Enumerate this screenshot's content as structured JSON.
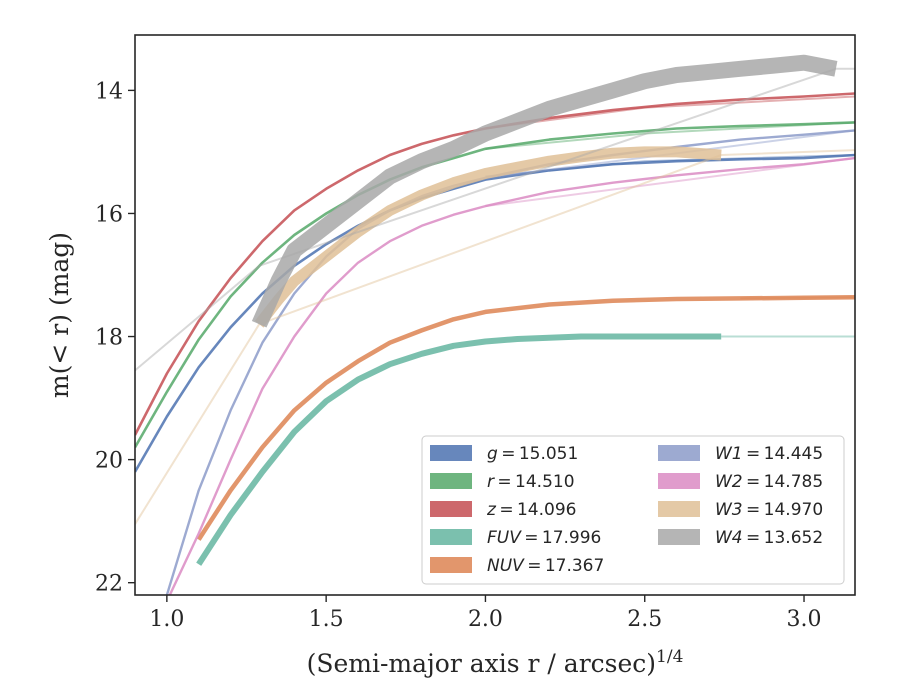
{
  "chart_data": {
    "type": "line",
    "xlabel": "(Semi-major axis r / arcsec)",
    "xlabel_superscript": "1/4",
    "ylabel": "m(< r) (mag)",
    "xlim": [
      0.9,
      3.16
    ],
    "ylim": [
      22.2,
      13.1
    ],
    "y_inverted": true,
    "grid": false,
    "legend_position": "lower-right",
    "xticks": [
      1.0,
      1.5,
      2.0,
      2.5,
      3.0
    ],
    "xtick_labels": [
      "1.0",
      "1.5",
      "2.0",
      "2.5",
      "3.0"
    ],
    "yticks": [
      14,
      16,
      18,
      20,
      22
    ],
    "ytick_labels": [
      "14",
      "16",
      "18",
      "20",
      "22"
    ],
    "series": [
      {
        "name": "g",
        "label_value": "15.051",
        "color": "#4c72b0",
        "x": [
          0.9,
          1.0,
          1.1,
          1.2,
          1.3,
          1.4,
          1.5,
          1.6,
          1.7,
          1.8,
          1.9,
          2.0,
          2.2,
          2.4,
          2.6,
          2.8,
          3.0,
          3.16
        ],
        "y": [
          20.2,
          19.3,
          18.5,
          17.85,
          17.3,
          16.85,
          16.5,
          16.2,
          15.95,
          15.75,
          15.6,
          15.45,
          15.3,
          15.2,
          15.15,
          15.12,
          15.1,
          15.05
        ],
        "model_x": [
          2.0,
          2.5,
          3.16
        ],
        "model_y": [
          15.4,
          15.15,
          15.05
        ]
      },
      {
        "name": "r",
        "label_value": "14.510",
        "color": "#55a868",
        "x": [
          0.9,
          1.0,
          1.1,
          1.2,
          1.3,
          1.4,
          1.5,
          1.6,
          1.7,
          1.8,
          1.9,
          2.0,
          2.2,
          2.4,
          2.6,
          2.8,
          3.0,
          3.16
        ],
        "y": [
          19.8,
          18.9,
          18.05,
          17.35,
          16.8,
          16.35,
          16.0,
          15.7,
          15.45,
          15.25,
          15.1,
          14.95,
          14.8,
          14.7,
          14.62,
          14.58,
          14.55,
          14.52
        ],
        "model_x": [
          2.0,
          2.5,
          3.16
        ],
        "model_y": [
          14.95,
          14.7,
          14.52
        ]
      },
      {
        "name": "z",
        "label_value": "14.096",
        "color": "#c44e52",
        "x": [
          0.9,
          1.0,
          1.1,
          1.2,
          1.3,
          1.4,
          1.5,
          1.6,
          1.7,
          1.8,
          1.9,
          2.0,
          2.2,
          2.4,
          2.6,
          2.8,
          3.0,
          3.16
        ],
        "y": [
          19.6,
          18.6,
          17.75,
          17.05,
          16.45,
          15.95,
          15.6,
          15.3,
          15.05,
          14.87,
          14.73,
          14.62,
          14.45,
          14.32,
          14.22,
          14.15,
          14.1,
          14.05
        ],
        "model_x": [
          2.0,
          2.5,
          3.16
        ],
        "model_y": [
          14.62,
          14.28,
          14.1
        ]
      },
      {
        "name": "FUV",
        "label_value": "17.996",
        "color": "#64b5a0",
        "x": [
          1.1,
          1.2,
          1.3,
          1.4,
          1.5,
          1.6,
          1.7,
          1.8,
          1.9,
          2.0,
          2.1,
          2.2,
          2.3,
          2.4,
          2.5,
          2.6,
          2.74
        ],
        "y": [
          21.7,
          20.9,
          20.2,
          19.55,
          19.05,
          18.7,
          18.45,
          18.28,
          18.15,
          18.08,
          18.04,
          18.02,
          18.0,
          18.0,
          18.0,
          18.0,
          18.0
        ],
        "model_x": [
          2.74,
          3.16
        ],
        "model_y": [
          18.0,
          18.0
        ]
      },
      {
        "name": "NUV",
        "label_value": "17.367",
        "color": "#dd8452",
        "x": [
          1.1,
          1.2,
          1.3,
          1.4,
          1.5,
          1.6,
          1.7,
          1.8,
          1.9,
          2.0,
          2.2,
          2.4,
          2.6,
          2.8,
          3.0,
          3.16
        ],
        "y": [
          21.3,
          20.5,
          19.8,
          19.2,
          18.75,
          18.4,
          18.1,
          17.9,
          17.72,
          17.6,
          17.48,
          17.42,
          17.39,
          17.38,
          17.37,
          17.36
        ],
        "model_x": [
          2.8,
          3.16
        ],
        "model_y": [
          17.38,
          17.36
        ]
      },
      {
        "name": "W1",
        "label_value": "14.445",
        "color": "#8c9bc9",
        "x": [
          1.0,
          1.1,
          1.2,
          1.3,
          1.4,
          1.5,
          1.6,
          1.7,
          1.8,
          1.9,
          2.0,
          2.2,
          2.4,
          2.6,
          2.8,
          3.0,
          3.16
        ],
        "y": [
          22.2,
          20.5,
          19.2,
          18.1,
          17.3,
          16.7,
          16.25,
          15.95,
          15.72,
          15.55,
          15.42,
          15.2,
          15.05,
          14.92,
          14.8,
          14.72,
          14.65
        ],
        "model_x": [
          2.0,
          3.16
        ],
        "model_y": [
          15.42,
          14.65
        ]
      },
      {
        "name": "W2",
        "label_value": "14.785",
        "color": "#da8bc3",
        "x": [
          1.0,
          1.1,
          1.2,
          1.3,
          1.4,
          1.5,
          1.6,
          1.7,
          1.8,
          1.9,
          2.0,
          2.2,
          2.4,
          2.6,
          2.8,
          3.0,
          3.16
        ],
        "y": [
          22.3,
          21.2,
          20.0,
          18.85,
          18.0,
          17.3,
          16.8,
          16.45,
          16.2,
          16.02,
          15.88,
          15.65,
          15.5,
          15.38,
          15.28,
          15.2,
          15.1
        ],
        "model_x": [
          2.0,
          3.16
        ],
        "model_y": [
          15.88,
          15.1
        ]
      },
      {
        "name": "W3",
        "label_value": "14.970",
        "color": "#dfc097",
        "x": [
          1.29,
          1.35,
          1.4,
          1.5,
          1.6,
          1.7,
          1.8,
          1.9,
          2.0,
          2.1,
          2.2,
          2.3,
          2.4,
          2.5,
          2.6,
          2.74
        ],
        "y": [
          17.8,
          17.4,
          17.1,
          16.7,
          16.3,
          15.95,
          15.7,
          15.5,
          15.35,
          15.25,
          15.15,
          15.08,
          15.02,
          15.0,
          15.0,
          15.05
        ],
        "model_x": [
          0.9,
          1.29,
          2.74,
          3.16
        ],
        "model_y": [
          21.05,
          17.8,
          15.05,
          14.97
        ]
      },
      {
        "name": "W4",
        "label_value": "13.652",
        "color": "#a8a8a8",
        "x": [
          1.29,
          1.35,
          1.4,
          1.5,
          1.6,
          1.7,
          1.8,
          1.9,
          2.0,
          2.1,
          2.2,
          2.3,
          2.4,
          2.5,
          2.6,
          2.7,
          2.8,
          2.9,
          3.0,
          3.1
        ],
        "y": [
          17.8,
          17.1,
          16.6,
          16.2,
          15.8,
          15.4,
          15.15,
          14.95,
          14.7,
          14.5,
          14.3,
          14.15,
          14.0,
          13.85,
          13.75,
          13.7,
          13.65,
          13.6,
          13.55,
          13.65
        ],
        "model_x": [
          0.9,
          1.29,
          3.1,
          3.16
        ],
        "model_y": [
          18.55,
          16.85,
          13.65,
          13.65
        ]
      }
    ]
  }
}
